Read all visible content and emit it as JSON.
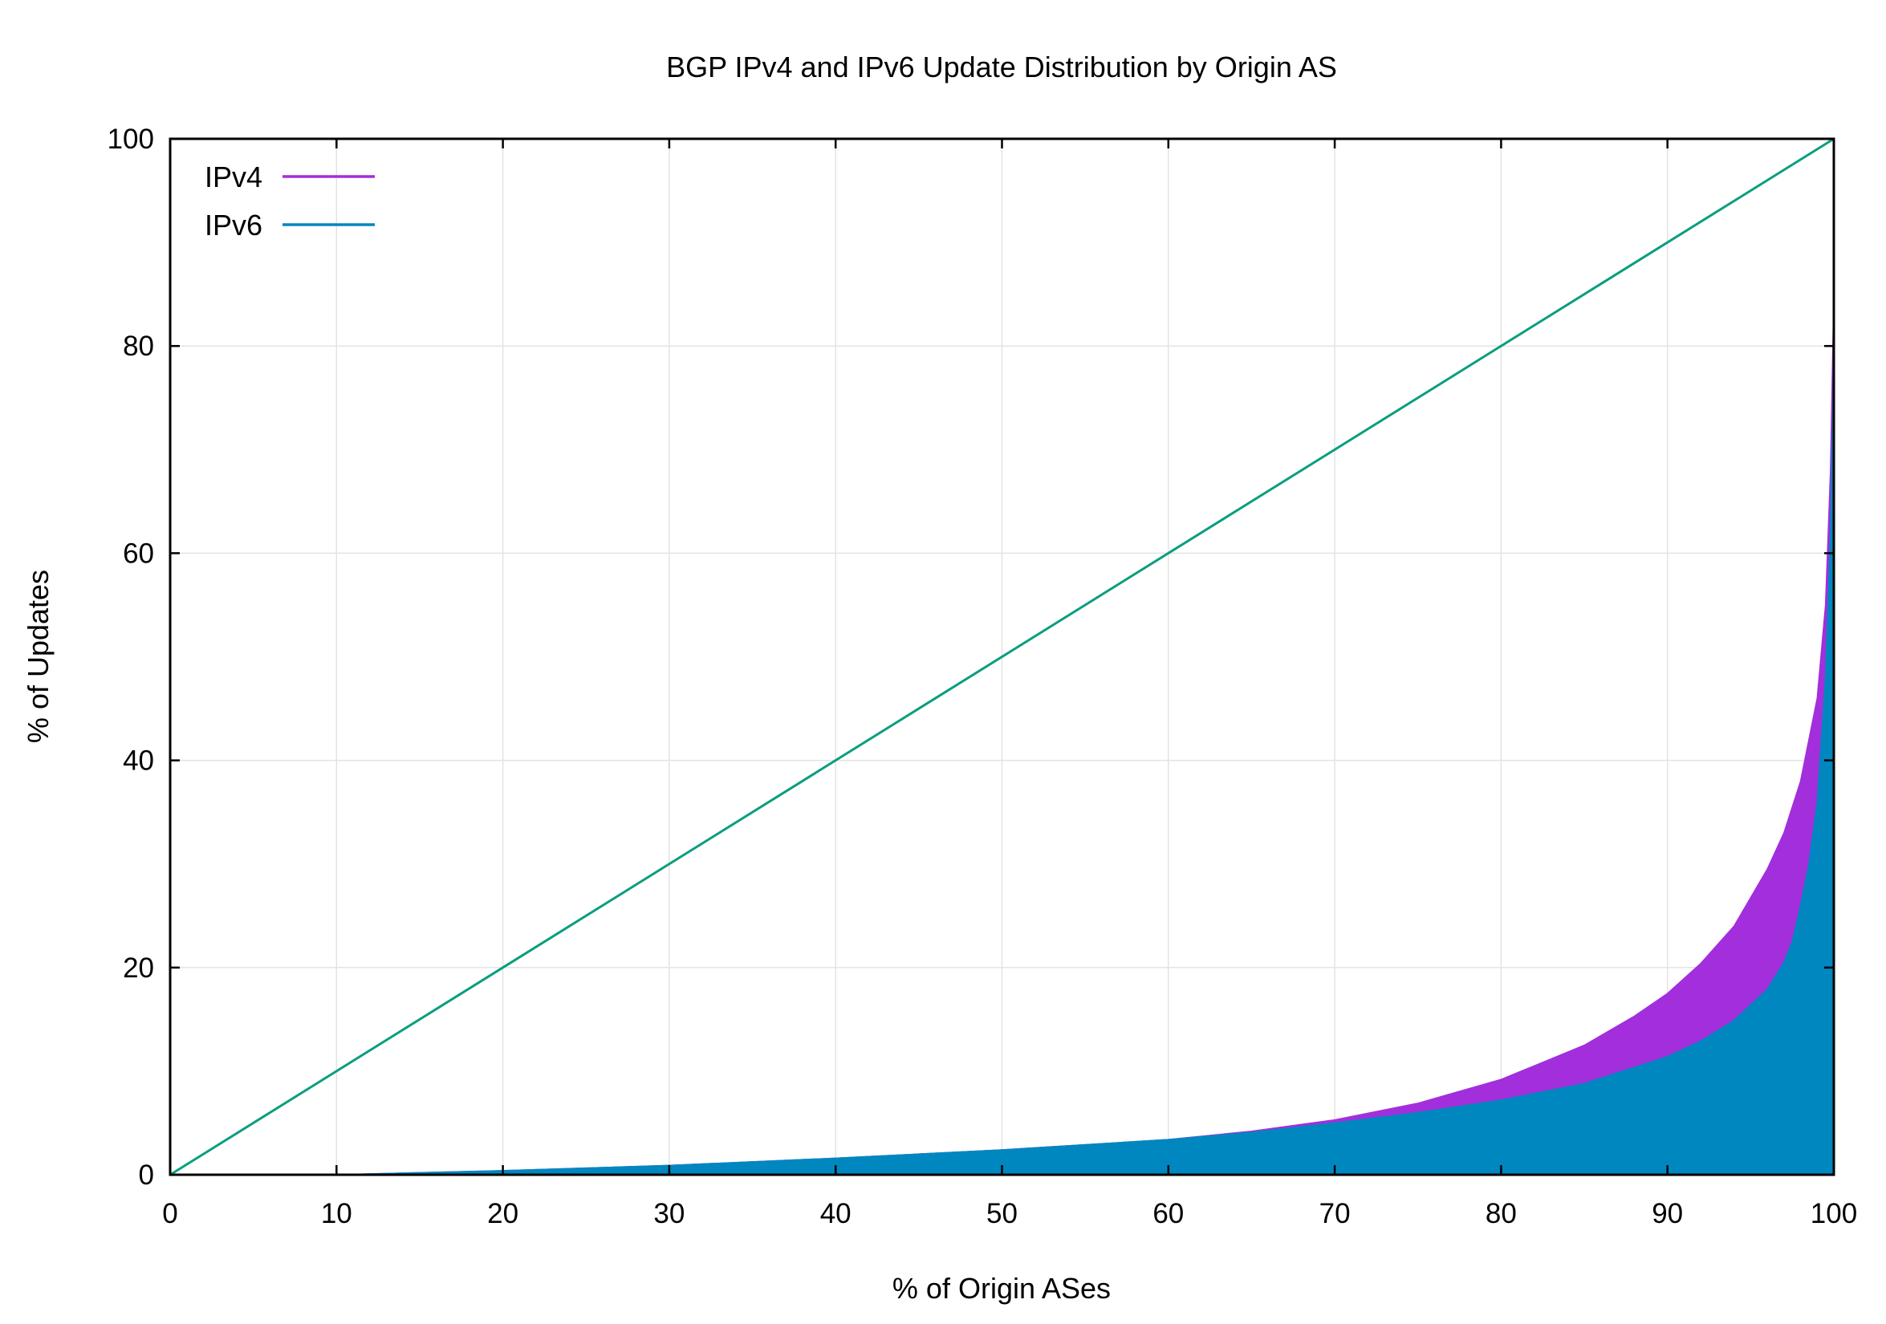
{
  "chart_data": {
    "type": "area",
    "title": "BGP IPv4 and IPv6 Update Distribution by Origin AS",
    "xlabel": "% of Origin ASes",
    "ylabel": "% of Updates",
    "xlim": [
      0,
      100
    ],
    "ylim": [
      0,
      100
    ],
    "xticks": [
      0,
      10,
      20,
      30,
      40,
      50,
      60,
      70,
      80,
      90,
      100
    ],
    "yticks": [
      0,
      20,
      40,
      60,
      80,
      100
    ],
    "grid": true,
    "legend_position": "top-left",
    "series": [
      {
        "name": "IPv4",
        "color": "#a22fdb",
        "x": [
          0,
          10,
          20,
          30,
          40,
          50,
          60,
          65,
          70,
          75,
          80,
          85,
          88,
          90,
          92,
          94,
          96,
          97,
          98,
          98.5,
          99,
          99.5,
          99.8,
          100
        ],
        "y": [
          0,
          0,
          0.4,
          0.9,
          1.6,
          2.4,
          3.4,
          4.2,
          5.3,
          6.9,
          9.2,
          12.5,
          15.3,
          17.5,
          20.4,
          24.0,
          29.5,
          33.0,
          38.0,
          42.0,
          46.0,
          55.0,
          68.0,
          85.0
        ]
      },
      {
        "name": "IPv6",
        "color": "#0087c0",
        "x": [
          0,
          10,
          20,
          30,
          40,
          50,
          60,
          65,
          70,
          75,
          80,
          85,
          90,
          92,
          94,
          96,
          97,
          97.5,
          98,
          98.5,
          99,
          99.5,
          99.8,
          100
        ],
        "y": [
          0,
          0,
          0.4,
          0.9,
          1.6,
          2.4,
          3.4,
          4.1,
          5.0,
          6.0,
          7.2,
          8.8,
          11.4,
          12.9,
          14.9,
          17.9,
          20.5,
          22.5,
          26.0,
          30.0,
          36.0,
          48.0,
          62.0,
          80.0
        ]
      }
    ],
    "reference_line": {
      "color": "#0a9e7e",
      "x": [
        0,
        100
      ],
      "y": [
        0,
        100
      ]
    }
  }
}
